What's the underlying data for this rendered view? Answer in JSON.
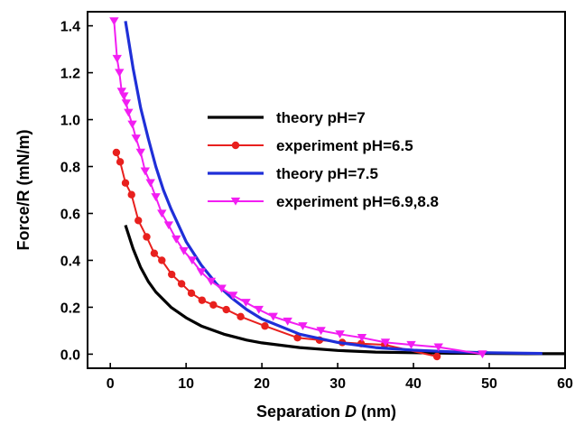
{
  "chart_data": {
    "type": "line",
    "xlabel_prefix": "Separation ",
    "xlabel_var": "D",
    "xlabel_suffix": " (nm)",
    "ylabel": "Force/R (mN/m)",
    "xlim": [
      -3,
      60
    ],
    "ylim": [
      -0.06,
      1.46
    ],
    "xticks": [
      0,
      10,
      20,
      30,
      40,
      50,
      60
    ],
    "yticks": [
      0.0,
      0.2,
      0.4,
      0.6,
      0.8,
      1.0,
      1.2,
      1.4
    ],
    "grid": false,
    "legend_position": "center",
    "series": [
      {
        "name": "theory pH=7",
        "color": "#000000",
        "marker": "none",
        "x": [
          2,
          3,
          4,
          5,
          6,
          8,
          10,
          12,
          15,
          18,
          20,
          25,
          30,
          35,
          40,
          45,
          50,
          55,
          60
        ],
        "y": [
          0.55,
          0.45,
          0.37,
          0.31,
          0.265,
          0.2,
          0.155,
          0.12,
          0.085,
          0.06,
          0.048,
          0.028,
          0.016,
          0.009,
          0.006,
          0.004,
          0.003,
          0.002,
          0.002
        ]
      },
      {
        "name": "experiment pH=6.5",
        "color": "#e8201e",
        "marker": "circle",
        "x": [
          0.8,
          1.3,
          2.0,
          2.8,
          3.7,
          4.8,
          5.8,
          6.8,
          8.1,
          9.4,
          10.7,
          12.1,
          13.6,
          15.3,
          17.2,
          20.4,
          24.7,
          27.6,
          30.6,
          33.1,
          36.2,
          43.1
        ],
        "y": [
          0.86,
          0.82,
          0.73,
          0.68,
          0.57,
          0.5,
          0.43,
          0.4,
          0.34,
          0.3,
          0.26,
          0.23,
          0.21,
          0.19,
          0.16,
          0.12,
          0.07,
          0.06,
          0.05,
          0.045,
          0.04,
          -0.01
        ]
      },
      {
        "name": "theory pH=7.5",
        "color": "#1f2fd8",
        "marker": "none",
        "x": [
          2,
          3,
          4,
          5,
          6,
          7,
          8,
          10,
          12,
          14,
          16,
          18,
          20,
          25,
          30,
          35,
          40,
          45,
          50,
          57
        ],
        "y": [
          1.42,
          1.22,
          1.05,
          0.92,
          0.8,
          0.7,
          0.62,
          0.48,
          0.38,
          0.3,
          0.24,
          0.19,
          0.15,
          0.085,
          0.05,
          0.028,
          0.017,
          0.01,
          0.006,
          0.003
        ]
      },
      {
        "name": "experiment pH=6.9,8.8",
        "color": "#f21ef2",
        "marker": "triangle-down",
        "x": [
          0.5,
          0.9,
          1.2,
          1.5,
          1.8,
          2.1,
          2.4,
          2.9,
          3.4,
          4.0,
          4.6,
          5.3,
          6.0,
          6.8,
          7.7,
          8.7,
          9.7,
          10.8,
          12.0,
          13.3,
          14.7,
          16.2,
          17.9,
          19.6,
          21.5,
          23.4,
          25.4,
          27.8,
          30.3,
          33.2,
          36.3,
          39.7,
          43.3,
          49.1
        ],
        "y": [
          1.42,
          1.26,
          1.2,
          1.12,
          1.1,
          1.07,
          1.03,
          0.98,
          0.92,
          0.86,
          0.78,
          0.73,
          0.67,
          0.6,
          0.55,
          0.49,
          0.44,
          0.4,
          0.35,
          0.31,
          0.28,
          0.25,
          0.22,
          0.19,
          0.16,
          0.14,
          0.12,
          0.1,
          0.085,
          0.07,
          0.05,
          0.04,
          0.03,
          0.0
        ]
      }
    ]
  }
}
